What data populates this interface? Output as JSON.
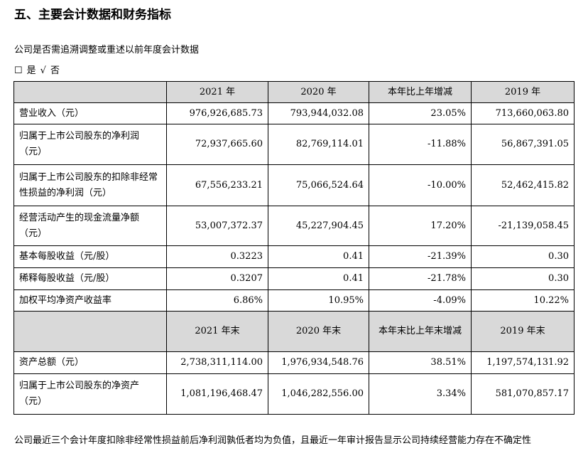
{
  "heading": "五、主要会计数据和财务指标",
  "question": "公司是否需追溯调整或重述以前年度会计数据",
  "answer": {
    "yes_box": "☐",
    "yes_label": "是",
    "no_mark": "√",
    "no_label": "否"
  },
  "table1": {
    "headers": [
      "",
      "2021 年",
      "2020 年",
      "本年比上年增减",
      "2019 年"
    ],
    "rows": [
      {
        "label": "营业收入（元）",
        "v2021": "976,926,685.73",
        "v2020": "793,944,032.08",
        "change": "23.05%",
        "v2019": "713,660,063.80"
      },
      {
        "label": "归属于上市公司股东的净利润（元）",
        "v2021": "72,937,665.60",
        "v2020": "82,769,114.01",
        "change": "-11.88%",
        "v2019": "56,867,391.05"
      },
      {
        "label": "归属于上市公司股东的扣除非经常性损益的净利润（元）",
        "v2021": "67,556,233.21",
        "v2020": "75,066,524.64",
        "change": "-10.00%",
        "v2019": "52,462,415.82"
      },
      {
        "label": "经营活动产生的现金流量净额（元）",
        "v2021": "53,007,372.37",
        "v2020": "45,227,904.45",
        "change": "17.20%",
        "v2019": "-21,139,058.45"
      },
      {
        "label": "基本每股收益（元/股）",
        "v2021": "0.3223",
        "v2020": "0.41",
        "change": "-21.39%",
        "v2019": "0.30"
      },
      {
        "label": "稀释每股收益（元/股）",
        "v2021": "0.3207",
        "v2020": "0.41",
        "change": "-21.78%",
        "v2019": "0.30"
      },
      {
        "label": "加权平均净资产收益率",
        "v2021": "6.86%",
        "v2020": "10.95%",
        "change": "-4.09%",
        "v2019": "10.22%"
      }
    ]
  },
  "table2": {
    "headers": [
      "",
      "2021 年末",
      "2020 年末",
      "本年末比上年末增减",
      "2019 年末"
    ],
    "rows": [
      {
        "label": "资产总额（元）",
        "v2021": "2,738,311,114.00",
        "v2020": "1,976,934,548.76",
        "change": "38.51%",
        "v2019": "1,197,574,131.92"
      },
      {
        "label": "归属于上市公司股东的净资产（元）",
        "v2021": "1,081,196,468.47",
        "v2020": "1,046,282,556.00",
        "change": "3.34%",
        "v2019": "581,070,857.17"
      }
    ]
  },
  "note": "公司最近三个会计年度扣除非经常性损益前后净利润孰低者均为负值，且最近一年审计报告显示公司持续经营能力存在不确定性"
}
